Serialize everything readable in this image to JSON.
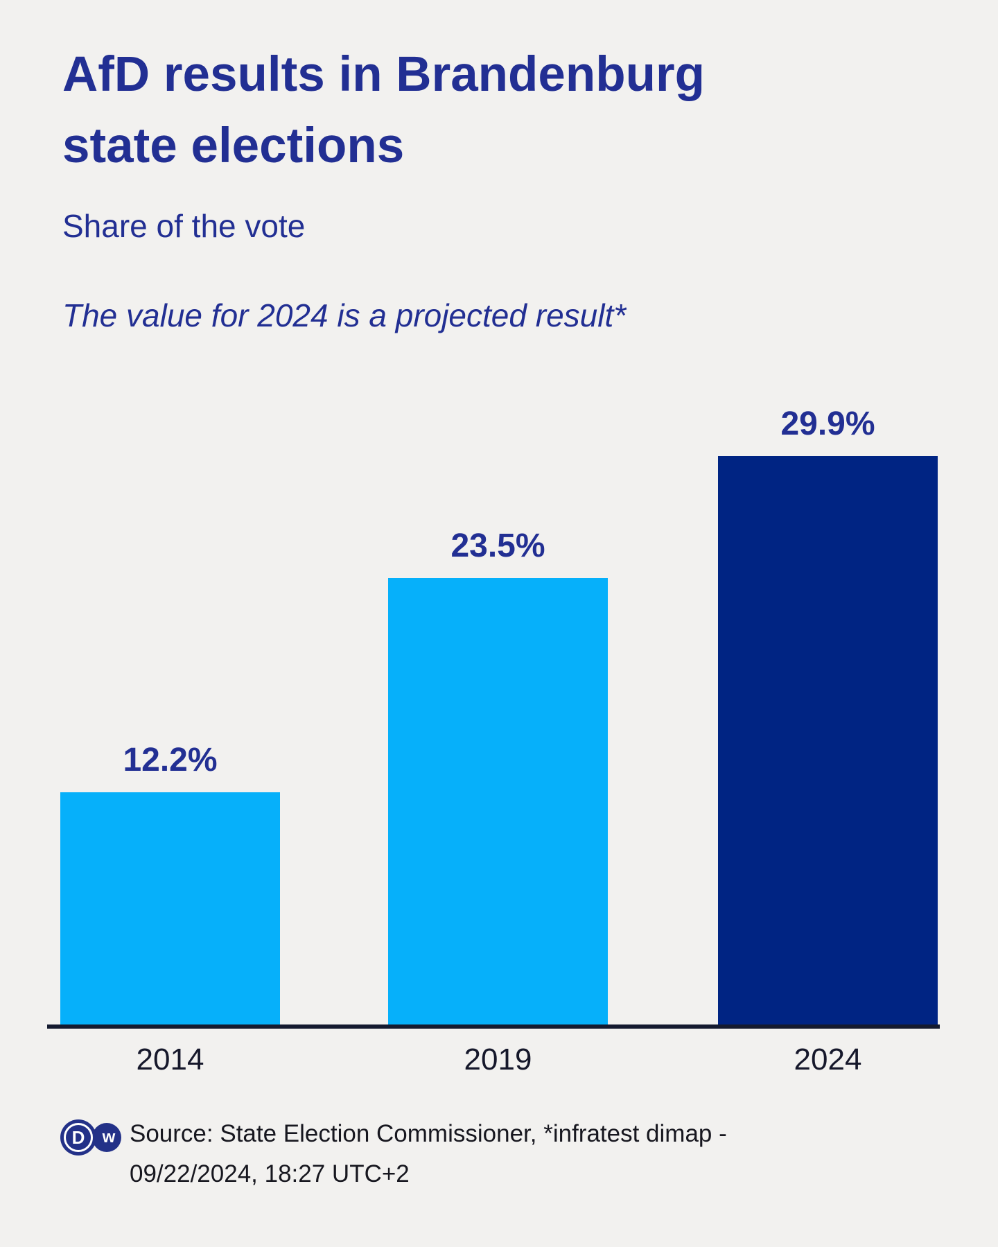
{
  "page": {
    "background": "#f2f1ef"
  },
  "header": {
    "title_line1": "AfD results in Brandenburg",
    "title_line2": "state elections",
    "subtitle": "Share of the vote",
    "note": "The value for 2024 is a projected result*"
  },
  "chart_data": {
    "type": "bar",
    "title": "AfD results in Brandenburg state elections",
    "subtitle": "Share of the vote",
    "annotation": "The value for 2024 is a projected result*",
    "categories": [
      "2014",
      "2019",
      "2024"
    ],
    "values": [
      12.2,
      23.5,
      29.9
    ],
    "value_labels": [
      "12.2%",
      "23.5%",
      "29.9%"
    ],
    "bar_colors": [
      "#06b0fa",
      "#06b0fa",
      "#002483"
    ],
    "xlabel": "",
    "ylabel": "",
    "ylim": [
      0,
      30
    ],
    "grid": false,
    "legend": false,
    "label_color": "#222f93",
    "axis_line_color": "#141a2f",
    "tick_label_color": "#16182b"
  },
  "footer": {
    "logo_name": "dw-logo",
    "logo_letter_d": "D",
    "logo_letter_w": "w",
    "source_line1": "Source: State Election Commissioner, *infratest dimap -",
    "source_line2": "09/22/2024, 18:27 UTC+2"
  }
}
